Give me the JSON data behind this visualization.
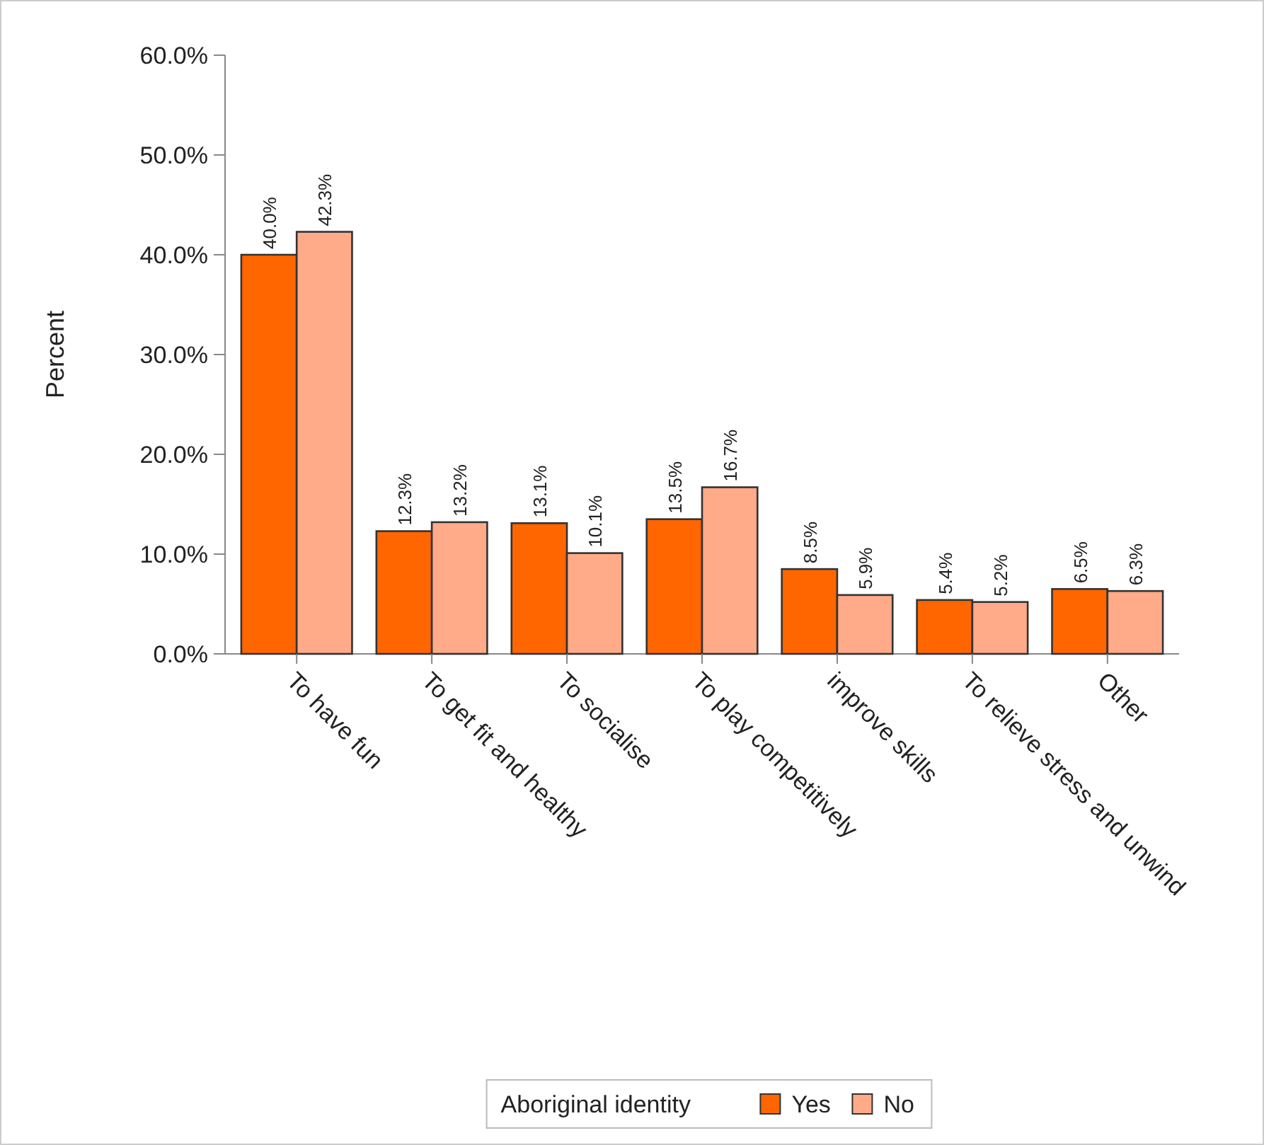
{
  "chart_data": {
    "type": "bar",
    "ylabel": "Percent",
    "legend_title": "Aboriginal identity",
    "legend": "bottom",
    "categories": [
      "To have fun",
      "To get fit and healthy",
      "To socialise",
      "To play competitively",
      "improve skills",
      "To relieve stress and unwind",
      "Other"
    ],
    "series": [
      {
        "name": "Yes",
        "color": "#ff6600",
        "values": [
          40.0,
          12.3,
          13.1,
          13.5,
          8.5,
          5.4,
          6.5
        ],
        "value_labels": [
          "40.0%",
          "12.3%",
          "13.1%",
          "13.5%",
          "8.5%",
          "5.4%",
          "6.5%"
        ]
      },
      {
        "name": "No",
        "color": "#ffaa88",
        "values": [
          42.3,
          13.2,
          10.1,
          16.7,
          5.9,
          5.2,
          6.3
        ],
        "value_labels": [
          "42.3%",
          "13.2%",
          "10.1%",
          "16.7%",
          "5.9%",
          "5.2%",
          "6.3%"
        ]
      }
    ],
    "ylim": [
      0,
      60
    ],
    "yticks": [
      {
        "value": 0,
        "label": "0.0%"
      },
      {
        "value": 10,
        "label": "10.0%"
      },
      {
        "value": 20,
        "label": "20.0%"
      },
      {
        "value": 30,
        "label": "30.0%"
      },
      {
        "value": 40,
        "label": "40.0%"
      },
      {
        "value": 50,
        "label": "50.0%"
      },
      {
        "value": 60,
        "label": "60.0%"
      }
    ]
  }
}
